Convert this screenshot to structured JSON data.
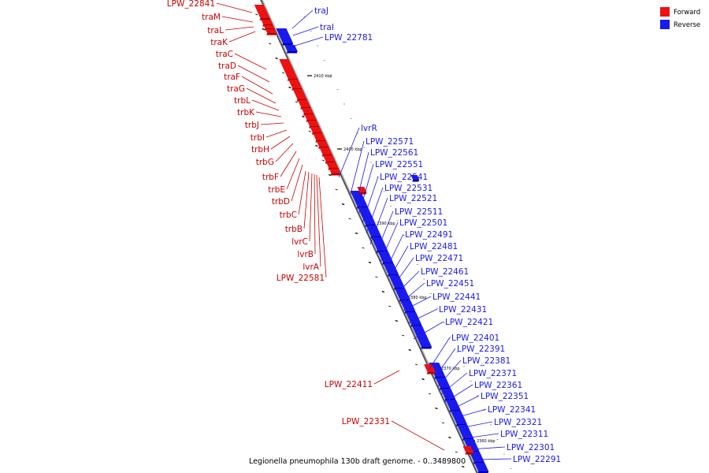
{
  "colors": {
    "forward": "#ee1111",
    "forward_dark": "#aa0000",
    "reverse": "#1a1aee",
    "reverse_dark": "#0000aa",
    "axis": "#777777"
  },
  "legend": {
    "forward_label": "Forward",
    "reverse_label": "Reverse"
  },
  "caption": "Legionella pneumophila 130b draft genome. - 0..3489800",
  "scale_labels": [
    "2410 kbp",
    "2400 kbp",
    "2390 kbp",
    "2380 kbp",
    "2370 kbp",
    "2360 kbp"
  ],
  "forward_genes": [
    "LPW_22841",
    "traM",
    "traL",
    "traK",
    "traC",
    "traD",
    "traF",
    "traG",
    "trbL",
    "trbK",
    "trbJ",
    "trbI",
    "trbH",
    "trbG",
    "trbF",
    "trbE",
    "trbD",
    "trbC",
    "trbB",
    "lvrC",
    "lvrB",
    "lvrA",
    "LPW_22581",
    "LPW_22411",
    "LPW_22331"
  ],
  "reverse_genes": [
    "traJ",
    "traI",
    "LPW_22781",
    "lvrR",
    "LPW_22571",
    "LPW_22561",
    "LPW_22551",
    "LPW_22541",
    "LPW_22531",
    "LPW_22521",
    "LPW_22511",
    "LPW_22501",
    "LPW_22491",
    "LPW_22481",
    "LPW_22471",
    "LPW_22461",
    "LPW_22451",
    "LPW_22441",
    "LPW_22431",
    "LPW_22421",
    "LPW_22401",
    "LPW_22391",
    "LPW_22381",
    "LPW_22371",
    "LPW_22361",
    "LPW_22351",
    "LPW_22341",
    "LPW_22321",
    "LPW_22311",
    "LPW_22301",
    "LPW_22291"
  ]
}
